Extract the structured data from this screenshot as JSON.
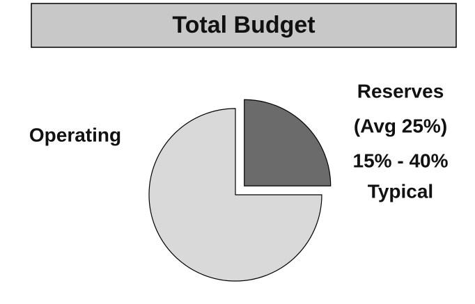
{
  "chart_data": {
    "type": "pie",
    "title": "Total Budget",
    "categories": [
      "Operating",
      "Reserves"
    ],
    "values": [
      75,
      25
    ],
    "colors": [
      "#d9d9d9",
      "#6b6b6b"
    ],
    "explode": [
      false,
      true
    ],
    "annotations": [
      "(Avg 25%)",
      "15% - 40%",
      "Typical"
    ]
  }
}
